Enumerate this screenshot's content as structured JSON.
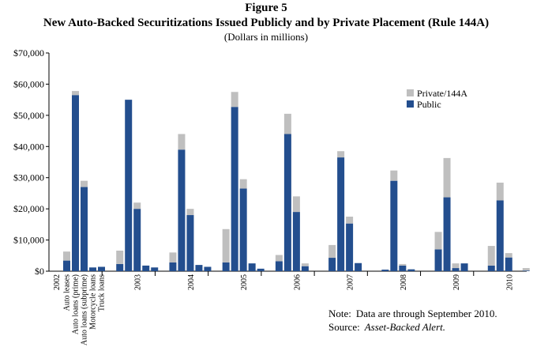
{
  "chart_data": {
    "type": "grouped_stacked_bar",
    "title": "Figure 5",
    "subtitle": "New Auto-Backed Securitizations Issued Publicly and by Private Placement (Rule 144A)",
    "units": "(Dollars in millions)",
    "groups": [
      "2002",
      "2003",
      "2004",
      "2005",
      "2006",
      "2007",
      "2008",
      "2009",
      "2010"
    ],
    "categories": [
      "Auto leases",
      "Auto loans (prime)",
      "Auto loans (subprime)",
      "Motorcycle loans",
      "Truck loans"
    ],
    "series": [
      {
        "name": "Public",
        "color": "#234e8e",
        "values": [
          [
            3400,
            56500,
            27000,
            1200,
            1400
          ],
          [
            2300,
            55000,
            20000,
            1800,
            1200
          ],
          [
            2800,
            39000,
            18000,
            2000,
            1400
          ],
          [
            2800,
            52700,
            26500,
            2500,
            800
          ],
          [
            3200,
            44000,
            19000,
            1600,
            0
          ],
          [
            4300,
            36500,
            15300,
            2600,
            0
          ],
          [
            500,
            29000,
            1800,
            600,
            0
          ],
          [
            7000,
            23700,
            1000,
            2500,
            0
          ],
          [
            1800,
            22700,
            4400,
            0,
            200
          ]
        ]
      },
      {
        "name": "Private/144A",
        "color": "#bfbfbf",
        "values": [
          [
            2900,
            1300,
            2000,
            0,
            0
          ],
          [
            4300,
            0,
            2000,
            0,
            0
          ],
          [
            3200,
            5000,
            2000,
            0,
            0
          ],
          [
            10700,
            4800,
            3000,
            0,
            0
          ],
          [
            2000,
            6500,
            5000,
            900,
            0
          ],
          [
            4100,
            2000,
            2200,
            0,
            0
          ],
          [
            0,
            3300,
            500,
            0,
            0
          ],
          [
            5600,
            12600,
            1500,
            0,
            0
          ],
          [
            6300,
            5700,
            1400,
            0,
            800
          ]
        ]
      }
    ],
    "ylim": [
      0,
      70000
    ],
    "yticks": [
      {
        "value": 0,
        "label": "$0"
      },
      {
        "value": 10000,
        "label": "$10,000"
      },
      {
        "value": 20000,
        "label": "$20,000"
      },
      {
        "value": 30000,
        "label": "$30,000"
      },
      {
        "value": 40000,
        "label": "$40,000"
      },
      {
        "value": 50000,
        "label": "$50,000"
      },
      {
        "value": 60000,
        "label": "$60,000"
      },
      {
        "value": 70000,
        "label": "$70,000"
      }
    ],
    "grid": false,
    "legend_position": "upper-right",
    "note_label": "Note:",
    "note": "Data are through September 2010.",
    "source_label": "Source:",
    "source": "Asset-Backed Alert."
  }
}
